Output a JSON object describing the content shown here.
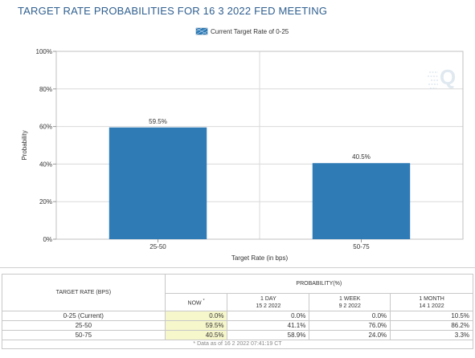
{
  "title": "TARGET RATE PROBABILITIES FOR 16 3 2022 FED MEETING",
  "chart_data": {
    "type": "bar",
    "title": "TARGET RATE PROBABILITIES FOR 16 3 2022 FED MEETING",
    "categories": [
      "25-50",
      "50-75"
    ],
    "series": [
      {
        "name": "Current Target Rate of 0-25",
        "values": [
          59.5,
          40.5
        ],
        "color": "#2e7bb6"
      }
    ],
    "data_labels": [
      "59.5%",
      "40.5%"
    ],
    "xlabel": "Target Rate (in bps)",
    "ylabel": "Probability",
    "ylim": [
      0,
      100
    ],
    "yticks": [
      0,
      20,
      40,
      60,
      80,
      100
    ],
    "ytick_labels": [
      "0%",
      "20%",
      "40%",
      "60%",
      "80%",
      "100%"
    ],
    "grid": true,
    "legend": "top-center",
    "watermark_icon": "q-logo-icon"
  },
  "table": {
    "rate_header": "TARGET RATE (BPS)",
    "prob_header": "PROBABILITY(%)",
    "columns": [
      {
        "line1": "NOW",
        "line2": "",
        "sup": "*"
      },
      {
        "line1": "1 DAY",
        "line2": "15 2 2022",
        "sup": ""
      },
      {
        "line1": "1 WEEK",
        "line2": "9 2 2022",
        "sup": ""
      },
      {
        "line1": "1 MONTH",
        "line2": "14 1 2022",
        "sup": ""
      }
    ],
    "rows": [
      {
        "rate": "0-25 (Current)",
        "values": [
          "0.0%",
          "0.0%",
          "0.0%",
          "10.5%"
        ]
      },
      {
        "rate": "25-50",
        "values": [
          "59.5%",
          "41.1%",
          "76.0%",
          "86.2%"
        ]
      },
      {
        "rate": "50-75",
        "values": [
          "40.5%",
          "58.9%",
          "24.0%",
          "3.3%"
        ]
      }
    ],
    "footnote": "* Data as of 16 2 2022 07:41:19 CT"
  },
  "colors": {
    "bar": "#2e7bb6",
    "title": "#2f5f8f",
    "now_highlight": "#f7f7cc"
  }
}
